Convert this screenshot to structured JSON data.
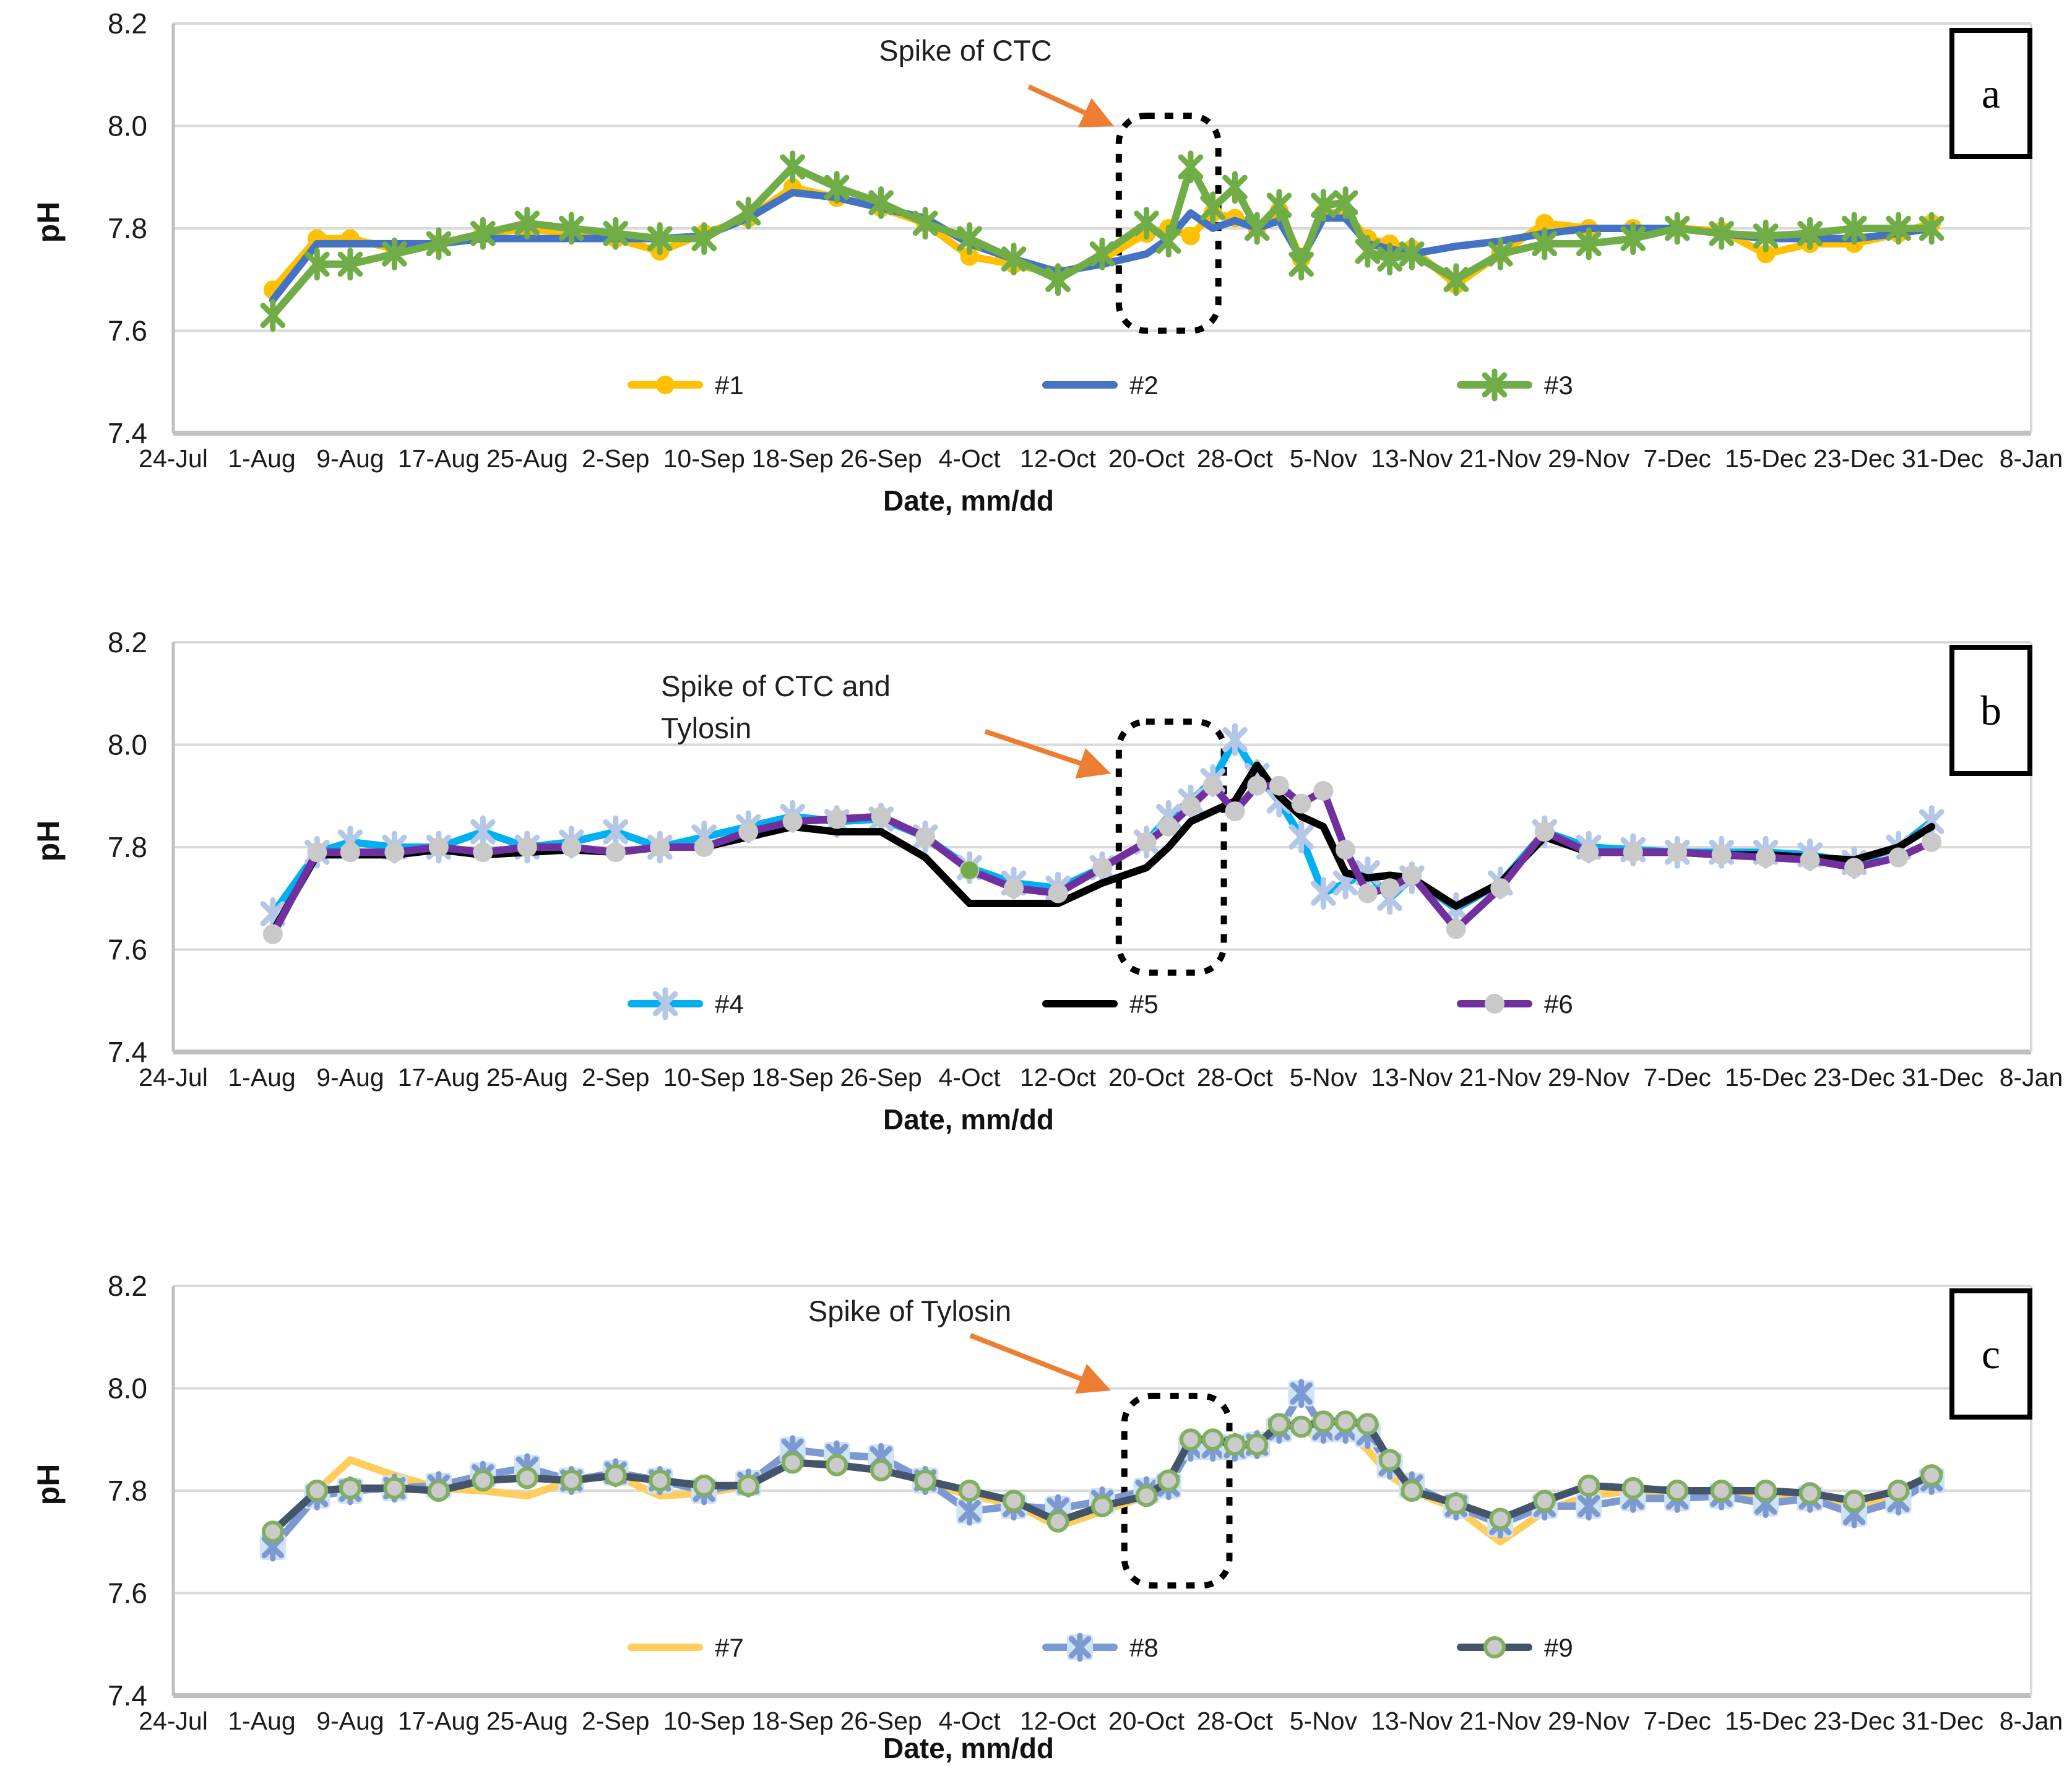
{
  "figure": {
    "y_axis_title": "pH",
    "x_axis_title": "Date, mm/dd",
    "y_tick_labels": [
      "8.2",
      "8.0",
      "7.8",
      "7.6",
      "7.4"
    ],
    "y_tick_values": [
      8.2,
      8.0,
      7.8,
      7.6,
      7.4
    ],
    "y_range": [
      7.4,
      8.2
    ],
    "x_tick_labels": [
      "24-Jul",
      "1-Aug",
      "9-Aug",
      "17-Aug",
      "25-Aug",
      "2-Sep",
      "10-Sep",
      "18-Sep",
      "26-Sep",
      "4-Oct",
      "12-Oct",
      "20-Oct",
      "28-Oct",
      "5-Nov",
      "13-Nov",
      "21-Nov",
      "29-Nov",
      "7-Dec",
      "15-Dec",
      "23-Dec",
      "31-Dec",
      "8-Jan"
    ],
    "x_tick_days": [
      0,
      8,
      16,
      24,
      32,
      40,
      48,
      56,
      64,
      72,
      80,
      88,
      96,
      104,
      112,
      120,
      128,
      136,
      144,
      152,
      160,
      168
    ],
    "colors": {
      "gridline": "#D9D9D9",
      "axis_line": "#BFBFBF",
      "arrow": "#ED7D31",
      "spike_box": "#000000",
      "tick_text": "#1A1A1A"
    }
  },
  "chart_data": [
    {
      "id": "a",
      "type": "line",
      "corner_label": "a",
      "annotation_text": "Spike of CTC",
      "ylim": [
        7.4,
        8.2
      ],
      "x_dates": [
        "2-Aug",
        "6-Aug",
        "9-Aug",
        "13-Aug",
        "17-Aug",
        "21-Aug",
        "25-Aug",
        "29-Aug",
        "2-Sep",
        "6-Sep",
        "10-Sep",
        "14-Sep",
        "18-Sep",
        "22-Sep",
        "26-Sep",
        "30-Sep",
        "4-Oct",
        "8-Oct",
        "12-Oct",
        "16-Oct",
        "20-Oct",
        "22-Oct",
        "24-Oct",
        "26-Oct",
        "28-Oct",
        "30-Oct",
        "1-Nov",
        "3-Nov",
        "5-Nov",
        "7-Nov",
        "9-Nov",
        "11-Nov",
        "13-Nov",
        "17-Nov",
        "21-Nov",
        "25-Nov",
        "29-Nov",
        "3-Dec",
        "7-Dec",
        "11-Dec",
        "15-Dec",
        "19-Dec",
        "23-Dec",
        "27-Dec",
        "30-Dec"
      ],
      "x_days": [
        9,
        13,
        16,
        20,
        24,
        28,
        32,
        36,
        40,
        44,
        48,
        52,
        56,
        60,
        64,
        68,
        72,
        76,
        80,
        84,
        88,
        90,
        92,
        94,
        96,
        98,
        100,
        102,
        104,
        106,
        108,
        110,
        112,
        116,
        120,
        124,
        128,
        132,
        136,
        140,
        144,
        148,
        152,
        156,
        159
      ],
      "series": [
        {
          "name": "#1",
          "line_color": "#FFC000",
          "marker": "circle",
          "marker_fill": "#FFC000",
          "values": [
            7.68,
            7.78,
            7.78,
            7.76,
            7.77,
            7.79,
            7.8,
            7.79,
            7.78,
            7.755,
            7.79,
            7.82,
            7.88,
            7.86,
            7.84,
            7.81,
            7.745,
            7.73,
            7.71,
            7.74,
            7.79,
            7.8,
            7.785,
            7.83,
            7.82,
            7.8,
            7.835,
            7.74,
            7.83,
            7.83,
            7.78,
            7.77,
            7.76,
            7.69,
            7.75,
            7.81,
            7.8,
            7.8,
            7.8,
            7.795,
            7.75,
            7.77,
            7.77,
            7.79,
            7.81
          ]
        },
        {
          "name": "#2",
          "line_color": "#4472C4",
          "marker": "none",
          "values": [
            7.66,
            7.77,
            7.77,
            7.77,
            7.77,
            7.78,
            7.78,
            7.78,
            7.78,
            7.78,
            7.785,
            7.82,
            7.87,
            7.86,
            7.84,
            7.82,
            7.77,
            7.74,
            7.715,
            7.73,
            7.75,
            7.78,
            7.83,
            7.8,
            7.815,
            7.8,
            7.815,
            7.74,
            7.82,
            7.82,
            7.77,
            7.76,
            7.75,
            7.765,
            7.775,
            7.79,
            7.8,
            7.8,
            7.8,
            7.79,
            7.78,
            7.78,
            7.78,
            7.79,
            7.8
          ]
        },
        {
          "name": "#3",
          "line_color": "#70AD47",
          "marker": "asterisk",
          "marker_stroke": "#70AD47",
          "values": [
            7.63,
            7.73,
            7.73,
            7.75,
            7.77,
            7.79,
            7.81,
            7.8,
            7.79,
            7.78,
            7.78,
            7.83,
            7.92,
            7.88,
            7.85,
            7.81,
            7.78,
            7.74,
            7.7,
            7.75,
            7.81,
            7.775,
            7.92,
            7.84,
            7.88,
            7.8,
            7.845,
            7.73,
            7.845,
            7.85,
            7.755,
            7.74,
            7.75,
            7.7,
            7.75,
            7.77,
            7.77,
            7.78,
            7.8,
            7.79,
            7.785,
            7.79,
            7.8,
            7.8,
            7.8
          ]
        }
      ],
      "spike_box": {
        "day_start": 85.5,
        "day_end": 94.5,
        "ph_top": 8.02,
        "ph_bottom": 7.6
      },
      "extra_markers": []
    },
    {
      "id": "b",
      "type": "line",
      "corner_label": "b",
      "annotation_text": "Spike of CTC and\nTylosin",
      "ylim": [
        7.4,
        8.2
      ],
      "x_dates": [
        "2-Aug",
        "6-Aug",
        "9-Aug",
        "13-Aug",
        "17-Aug",
        "21-Aug",
        "25-Aug",
        "29-Aug",
        "2-Sep",
        "6-Sep",
        "10-Sep",
        "14-Sep",
        "18-Sep",
        "22-Sep",
        "26-Sep",
        "30-Sep",
        "4-Oct",
        "8-Oct",
        "12-Oct",
        "16-Oct",
        "20-Oct",
        "22-Oct",
        "24-Oct",
        "26-Oct",
        "28-Oct",
        "30-Oct",
        "1-Nov",
        "3-Nov",
        "5-Nov",
        "7-Nov",
        "9-Nov",
        "11-Nov",
        "13-Nov",
        "17-Nov",
        "21-Nov",
        "25-Nov",
        "29-Nov",
        "3-Dec",
        "7-Dec",
        "11-Dec",
        "15-Dec",
        "19-Dec",
        "23-Dec",
        "27-Dec",
        "30-Dec"
      ],
      "x_days": [
        9,
        13,
        16,
        20,
        24,
        28,
        32,
        36,
        40,
        44,
        48,
        52,
        56,
        60,
        64,
        68,
        72,
        76,
        80,
        84,
        88,
        90,
        92,
        94,
        96,
        98,
        100,
        102,
        104,
        106,
        108,
        110,
        112,
        116,
        120,
        124,
        128,
        132,
        136,
        140,
        144,
        148,
        152,
        156,
        159
      ],
      "series": [
        {
          "name": "#4",
          "line_color": "#00B0F0",
          "marker": "asterisk",
          "marker_stroke": "#B4C7E7",
          "values": [
            7.67,
            7.79,
            7.81,
            7.8,
            7.8,
            7.83,
            7.8,
            7.81,
            7.83,
            7.8,
            7.82,
            7.84,
            7.86,
            7.85,
            7.855,
            7.82,
            7.76,
            7.73,
            7.72,
            7.76,
            7.81,
            7.86,
            7.89,
            7.93,
            8.01,
            7.94,
            7.89,
            7.82,
            7.71,
            7.73,
            7.75,
            7.7,
            7.74,
            7.68,
            7.73,
            7.83,
            7.8,
            7.795,
            7.79,
            7.79,
            7.79,
            7.785,
            7.77,
            7.8,
            7.85
          ]
        },
        {
          "name": "#5",
          "line_color": "#000000",
          "marker": "none",
          "values": [
            7.635,
            7.785,
            7.785,
            7.785,
            7.795,
            7.785,
            7.79,
            7.795,
            7.79,
            7.8,
            7.8,
            7.82,
            7.84,
            7.83,
            7.83,
            7.78,
            7.69,
            7.69,
            7.69,
            7.73,
            7.76,
            7.8,
            7.85,
            7.87,
            7.89,
            7.96,
            7.9,
            7.86,
            7.84,
            7.75,
            7.74,
            7.745,
            7.74,
            7.685,
            7.73,
            7.82,
            7.79,
            7.79,
            7.79,
            7.785,
            7.785,
            7.78,
            7.775,
            7.8,
            7.84
          ]
        },
        {
          "name": "#6",
          "line_color": "#7030A0",
          "marker": "gray-circle",
          "marker_fill": "#C9C9C9",
          "values": [
            7.63,
            7.79,
            7.79,
            7.79,
            7.8,
            7.79,
            7.8,
            7.8,
            7.79,
            7.8,
            7.8,
            7.83,
            7.85,
            7.855,
            7.86,
            7.82,
            7.755,
            7.72,
            7.71,
            7.76,
            7.81,
            7.84,
            7.88,
            7.92,
            7.87,
            7.92,
            7.92,
            7.885,
            7.91,
            7.795,
            7.71,
            7.72,
            7.745,
            7.64,
            7.72,
            7.83,
            7.79,
            7.79,
            7.79,
            7.785,
            7.78,
            7.775,
            7.76,
            7.78,
            7.81
          ]
        }
      ],
      "spike_box": {
        "day_start": 85.5,
        "day_end": 95.0,
        "ph_top": 8.045,
        "ph_bottom": 7.555
      },
      "extra_markers": [
        {
          "day": 72,
          "value": 7.755,
          "type": "circle",
          "fill": "#70AD47"
        }
      ]
    },
    {
      "id": "c",
      "type": "line",
      "corner_label": "c",
      "annotation_text": "Spike of Tylosin",
      "ylim": [
        7.4,
        8.2
      ],
      "x_dates": [
        "2-Aug",
        "6-Aug",
        "9-Aug",
        "13-Aug",
        "17-Aug",
        "21-Aug",
        "25-Aug",
        "29-Aug",
        "2-Sep",
        "6-Sep",
        "10-Sep",
        "14-Sep",
        "18-Sep",
        "22-Sep",
        "26-Sep",
        "30-Sep",
        "4-Oct",
        "8-Oct",
        "12-Oct",
        "16-Oct",
        "20-Oct",
        "22-Oct",
        "24-Oct",
        "26-Oct",
        "28-Oct",
        "30-Oct",
        "1-Nov",
        "3-Nov",
        "5-Nov",
        "7-Nov",
        "9-Nov",
        "11-Nov",
        "13-Nov",
        "17-Nov",
        "21-Nov",
        "25-Nov",
        "29-Nov",
        "3-Dec",
        "7-Dec",
        "11-Dec",
        "15-Dec",
        "19-Dec",
        "23-Dec",
        "27-Dec",
        "30-Dec"
      ],
      "x_days": [
        9,
        13,
        16,
        20,
        24,
        28,
        32,
        36,
        40,
        44,
        48,
        52,
        56,
        60,
        64,
        68,
        72,
        76,
        80,
        84,
        88,
        90,
        92,
        94,
        96,
        98,
        100,
        102,
        104,
        106,
        108,
        110,
        112,
        116,
        120,
        124,
        128,
        132,
        136,
        140,
        144,
        148,
        152,
        156,
        159
      ],
      "series": [
        {
          "name": "#7",
          "line_color": "#FFCD5B",
          "marker": "none",
          "values": [
            7.72,
            7.8,
            7.86,
            7.83,
            7.805,
            7.8,
            7.79,
            7.82,
            7.83,
            7.79,
            7.795,
            7.81,
            7.855,
            7.85,
            7.84,
            7.82,
            7.79,
            7.775,
            7.73,
            7.76,
            7.79,
            7.82,
            7.89,
            7.89,
            7.885,
            7.89,
            7.92,
            7.92,
            7.9,
            7.92,
            7.88,
            7.83,
            7.8,
            7.765,
            7.7,
            7.76,
            7.79,
            7.8,
            7.795,
            7.795,
            7.785,
            7.79,
            7.765,
            7.79,
            7.82
          ]
        },
        {
          "name": "#8",
          "line_color": "#7D99D1",
          "marker": "asterisk-boxed",
          "marker_stroke": "#7D99D1",
          "marker_fill": "#CFE3F5",
          "values": [
            7.69,
            7.79,
            7.8,
            7.805,
            7.81,
            7.83,
            7.845,
            7.82,
            7.835,
            7.82,
            7.8,
            7.815,
            7.88,
            7.87,
            7.865,
            7.82,
            7.76,
            7.77,
            7.765,
            7.78,
            7.8,
            7.81,
            7.885,
            7.885,
            7.885,
            7.89,
            7.92,
            7.99,
            7.92,
            7.92,
            7.91,
            7.85,
            7.81,
            7.77,
            7.735,
            7.77,
            7.77,
            7.785,
            7.785,
            7.79,
            7.775,
            7.785,
            7.755,
            7.78,
            7.82
          ]
        },
        {
          "name": "#9",
          "line_color": "#44546A",
          "marker": "ring-circle",
          "marker_fill": "#CBCBCB",
          "marker_stroke": "#82AE60",
          "values": [
            7.72,
            7.8,
            7.805,
            7.805,
            7.8,
            7.82,
            7.825,
            7.82,
            7.83,
            7.82,
            7.81,
            7.81,
            7.855,
            7.85,
            7.84,
            7.82,
            7.8,
            7.78,
            7.74,
            7.77,
            7.79,
            7.82,
            7.9,
            7.9,
            7.89,
            7.89,
            7.93,
            7.925,
            7.935,
            7.935,
            7.93,
            7.86,
            7.8,
            7.775,
            7.745,
            7.78,
            7.81,
            7.805,
            7.8,
            7.8,
            7.8,
            7.795,
            7.78,
            7.8,
            7.83
          ]
        }
      ],
      "spike_box": {
        "day_start": 86.0,
        "day_end": 95.5,
        "ph_top": 7.985,
        "ph_bottom": 7.615
      },
      "extra_markers": []
    }
  ]
}
